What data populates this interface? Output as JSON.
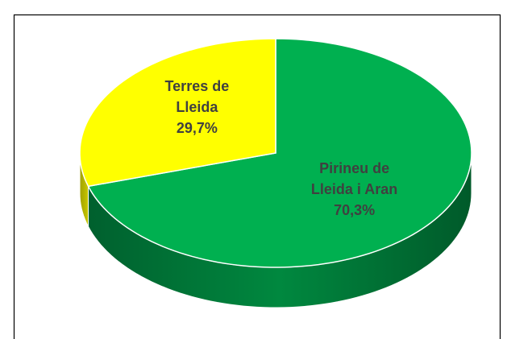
{
  "chart_data": {
    "type": "pie",
    "categories": [
      "Pirineu de Lleida i Aran",
      "Terres de Lleida"
    ],
    "values": [
      70.3,
      29.7
    ],
    "value_labels": [
      "70,3%",
      "29,7%"
    ],
    "colors": [
      "#00b050",
      "#ffff00"
    ],
    "start_angle": 0,
    "direction": "clockwise"
  }
}
